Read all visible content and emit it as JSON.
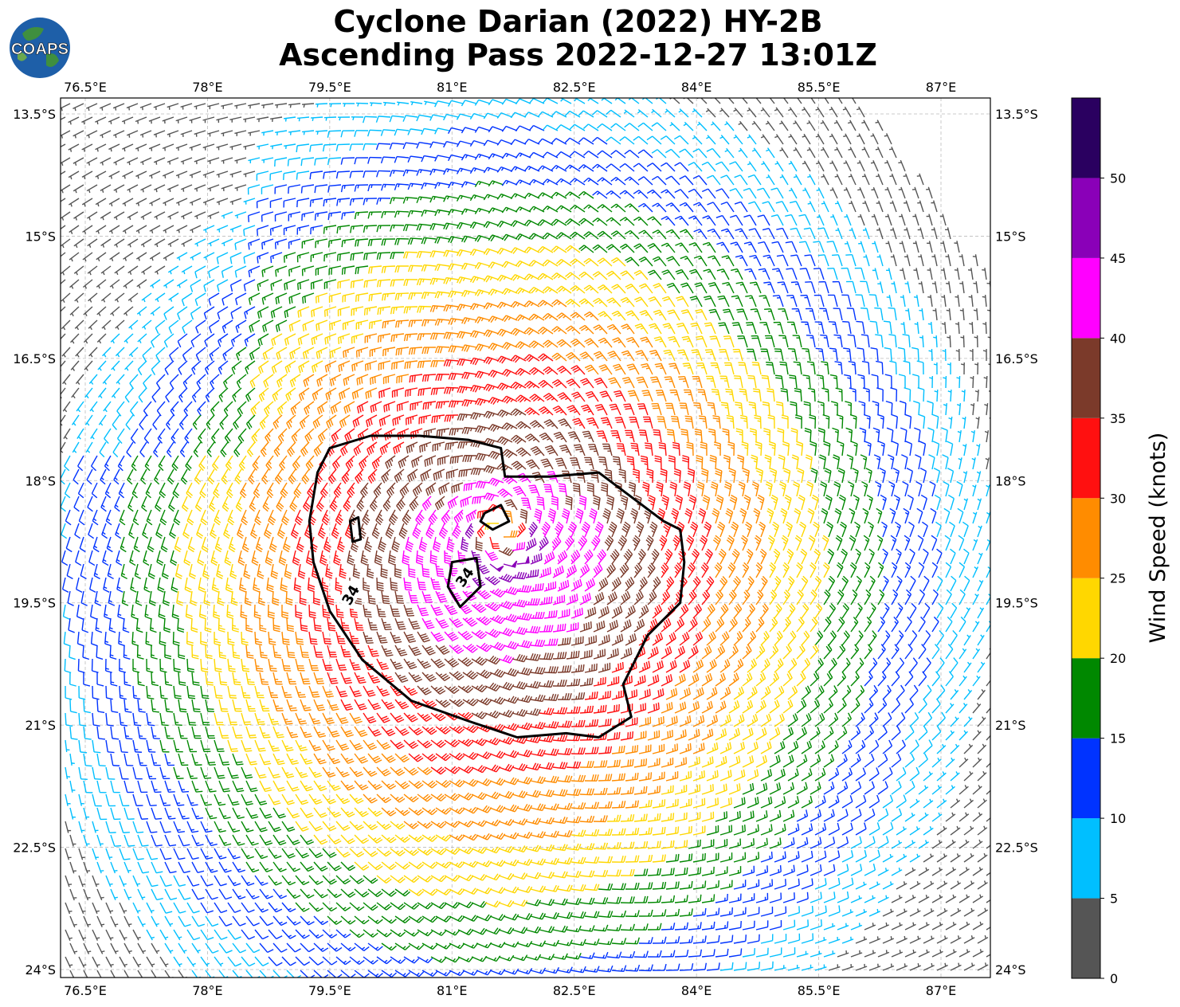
{
  "title": {
    "line1": "Cyclone Darian (2022) HY-2B",
    "line2": "Ascending Pass 2022-12-27 13:01Z"
  },
  "logo": {
    "text": "COAPS"
  },
  "map": {
    "lon_range": [
      76,
      87.8
    ],
    "lat_range": [
      -24.1,
      -13.3
    ],
    "lon_ticks": [
      {
        "value": 76.5,
        "label": "76.5°E"
      },
      {
        "value": 78,
        "label": "78°E"
      },
      {
        "value": 79.5,
        "label": "79.5°E"
      },
      {
        "value": 81,
        "label": "81°E"
      },
      {
        "value": 82.5,
        "label": "82.5°E"
      },
      {
        "value": 84,
        "label": "84°E"
      },
      {
        "value": 85.5,
        "label": "85.5°E"
      },
      {
        "value": 87,
        "label": "87°E"
      }
    ],
    "lat_ticks": [
      {
        "value": -13.5,
        "label": "13.5°S"
      },
      {
        "value": -15,
        "label": "15°S"
      },
      {
        "value": -16.5,
        "label": "16.5°S"
      },
      {
        "value": -18,
        "label": "18°S"
      },
      {
        "value": -19.5,
        "label": "19.5°S"
      },
      {
        "value": -21,
        "label": "21°S"
      },
      {
        "value": -22.5,
        "label": "22.5°S"
      },
      {
        "value": -24,
        "label": "24°S"
      }
    ],
    "grid": true,
    "storm_center": {
      "lon": 81.6,
      "lat": -18.6
    },
    "contour_34kt": {
      "level_label": "34",
      "outline": [
        [
          79.5,
          -17.6
        ],
        [
          80.0,
          -17.45
        ],
        [
          80.6,
          -17.45
        ],
        [
          81.2,
          -17.5
        ],
        [
          81.6,
          -17.6
        ],
        [
          81.65,
          -17.95
        ],
        [
          82.2,
          -17.95
        ],
        [
          82.8,
          -17.9
        ],
        [
          83.2,
          -18.2
        ],
        [
          83.6,
          -18.5
        ],
        [
          83.8,
          -18.6
        ],
        [
          83.85,
          -19.0
        ],
        [
          83.8,
          -19.5
        ],
        [
          83.4,
          -19.9
        ],
        [
          83.1,
          -20.5
        ],
        [
          83.2,
          -20.9
        ],
        [
          82.8,
          -21.15
        ],
        [
          82.4,
          -21.1
        ],
        [
          81.8,
          -21.15
        ],
        [
          81.2,
          -20.95
        ],
        [
          80.5,
          -20.7
        ],
        [
          79.9,
          -20.2
        ],
        [
          79.5,
          -19.6
        ],
        [
          79.3,
          -19.0
        ],
        [
          79.25,
          -18.5
        ],
        [
          79.35,
          -17.9
        ]
      ],
      "inner_loops": [
        [
          [
            81.4,
            -18.4
          ],
          [
            81.6,
            -18.3
          ],
          [
            81.7,
            -18.5
          ],
          [
            81.5,
            -18.6
          ],
          [
            81.35,
            -18.5
          ]
        ],
        [
          [
            79.75,
            -18.5
          ],
          [
            79.85,
            -18.45
          ],
          [
            79.88,
            -18.72
          ],
          [
            79.78,
            -18.75
          ]
        ],
        [
          [
            81.0,
            -19.0
          ],
          [
            81.3,
            -18.95
          ],
          [
            81.35,
            -19.3
          ],
          [
            81.1,
            -19.55
          ],
          [
            80.95,
            -19.3
          ]
        ]
      ]
    },
    "wind_speed_bins_kt": [
      0,
      5,
      10,
      15,
      20,
      25,
      30,
      35,
      40,
      45,
      50,
      55
    ]
  },
  "colorbar": {
    "title": "Wind Speed (knots)",
    "tick_labels": [
      "0",
      "5",
      "10",
      "15",
      "20",
      "25",
      "30",
      "35",
      "40",
      "45",
      "50"
    ],
    "colors": [
      "#555555",
      "#00bfff",
      "#0033ff",
      "#008800",
      "#ffd700",
      "#ff8c00",
      "#ff1010",
      "#7b3a2a",
      "#ff00ff",
      "#8a00b8",
      "#2a0060"
    ]
  }
}
